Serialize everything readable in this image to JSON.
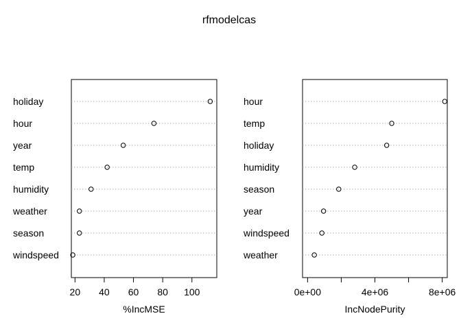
{
  "title": "rfmodelcas",
  "chart_data": [
    {
      "type": "dotchart",
      "xlabel": "%IncMSE",
      "xlim": [
        17.5,
        117
      ],
      "ticks": [
        20,
        40,
        60,
        80,
        100
      ],
      "tick_labels": [
        "20",
        "40",
        "60",
        "80",
        "100"
      ],
      "grid": "horizontal dotted guides",
      "categories": [
        "holiday",
        "hour",
        "year",
        "temp",
        "humidity",
        "weather",
        "season",
        "windspeed"
      ],
      "values": [
        112.5,
        74.0,
        53.0,
        42.0,
        31.0,
        23.0,
        23.0,
        18.5
      ]
    },
    {
      "type": "dotchart",
      "xlabel": "IncNodePurity",
      "xlim": [
        -300000,
        8300000
      ],
      "ticks": [
        0,
        2000000,
        4000000,
        6000000,
        8000000
      ],
      "tick_labels": [
        "0e+00",
        "",
        "4e+06",
        "",
        "8e+06"
      ],
      "grid": "horizontal dotted guides",
      "categories": [
        "hour",
        "temp",
        "holiday",
        "humidity",
        "season",
        "year",
        "windspeed",
        "weather"
      ],
      "values": [
        8150000,
        5000000,
        4700000,
        2800000,
        1850000,
        950000,
        850000,
        400000
      ]
    }
  ]
}
